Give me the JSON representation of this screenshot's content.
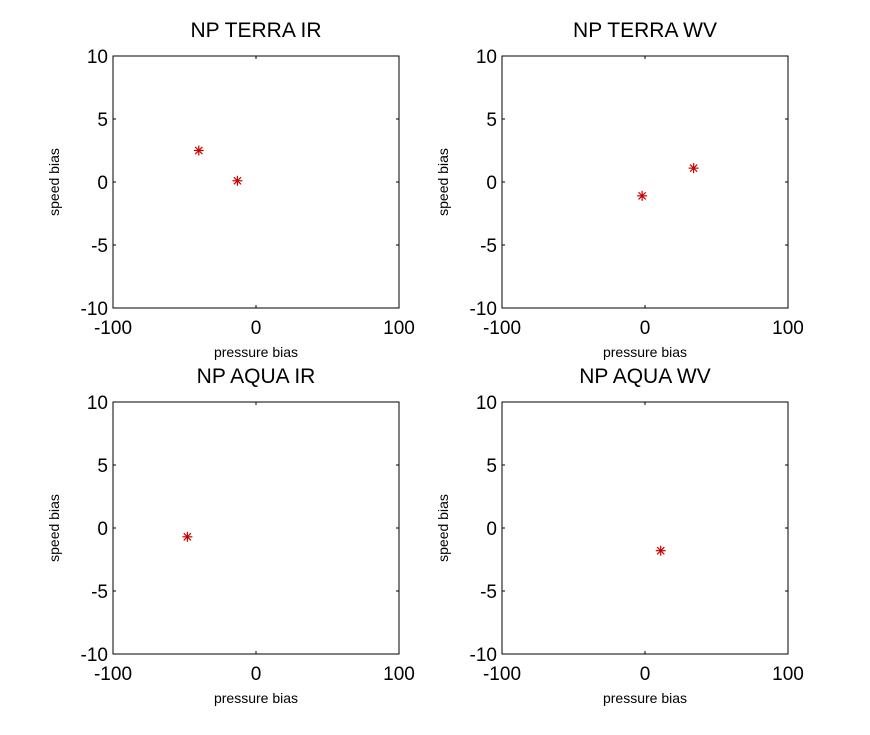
{
  "marker_color": "#cc0000",
  "chart_data": [
    {
      "type": "scatter",
      "title": "NP TERRA IR",
      "xlabel": "pressure bias",
      "ylabel": "speed bias",
      "xlim": [
        -100,
        100
      ],
      "ylim": [
        -10,
        10
      ],
      "xticks": [
        "-100",
        "0",
        "100"
      ],
      "yticks": [
        "10",
        "5",
        "0",
        "-5",
        "-10"
      ],
      "grid": false,
      "marker": "asterisk",
      "points": [
        {
          "x": -40,
          "y": 2.5
        },
        {
          "x": -13,
          "y": 0.1
        }
      ]
    },
    {
      "type": "scatter",
      "title": "NP TERRA WV",
      "xlabel": "pressure bias",
      "ylabel": "speed bias",
      "xlim": [
        -100,
        100
      ],
      "ylim": [
        -10,
        10
      ],
      "xticks": [
        "-100",
        "0",
        "100"
      ],
      "yticks": [
        "10",
        "5",
        "0",
        "-5",
        "-10"
      ],
      "grid": false,
      "marker": "asterisk",
      "points": [
        {
          "x": -2,
          "y": -1.1
        },
        {
          "x": 34,
          "y": 1.1
        }
      ]
    },
    {
      "type": "scatter",
      "title": "NP AQUA IR",
      "xlabel": "pressure bias",
      "ylabel": "speed bias",
      "xlim": [
        -100,
        100
      ],
      "ylim": [
        -10,
        10
      ],
      "xticks": [
        "-100",
        "0",
        "100"
      ],
      "yticks": [
        "10",
        "5",
        "0",
        "-5",
        "-10"
      ],
      "grid": false,
      "marker": "asterisk",
      "points": [
        {
          "x": -48,
          "y": -0.7
        }
      ]
    },
    {
      "type": "scatter",
      "title": "NP AQUA WV",
      "xlabel": "pressure bias",
      "ylabel": "speed bias",
      "xlim": [
        -100,
        100
      ],
      "ylim": [
        -10,
        10
      ],
      "xticks": [
        "-100",
        "0",
        "100"
      ],
      "yticks": [
        "10",
        "5",
        "0",
        "-5",
        "-10"
      ],
      "grid": false,
      "marker": "asterisk",
      "points": [
        {
          "x": 11,
          "y": -1.8
        }
      ]
    }
  ]
}
